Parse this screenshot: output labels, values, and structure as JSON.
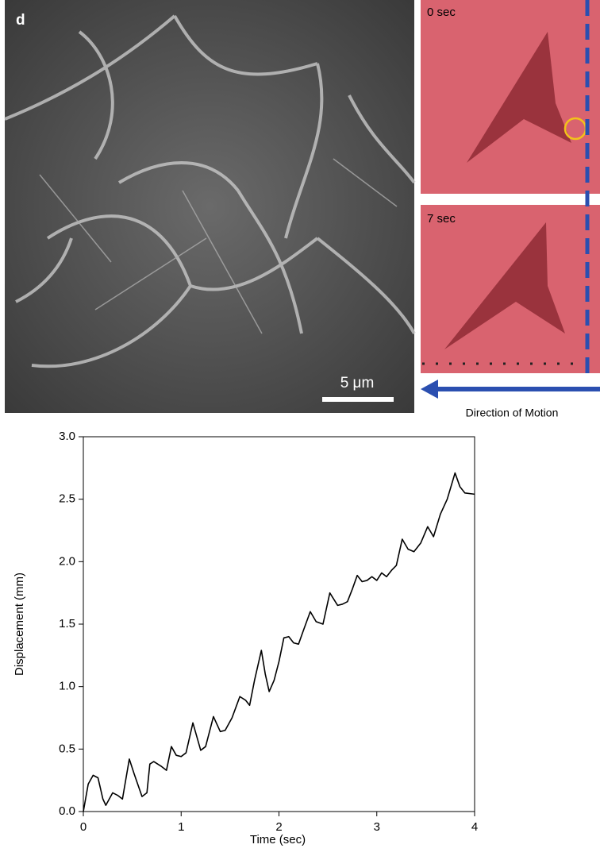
{
  "panel_label": "d",
  "scale_bar": "5 μm",
  "frames": [
    "0 sec",
    "7 sec"
  ],
  "direction_label": "Direction of Motion",
  "chart_data": {
    "type": "line",
    "x_label": "Time (sec)",
    "y_label": "Displacement (mm)",
    "xlim": [
      0,
      4
    ],
    "ylim": [
      0,
      3
    ],
    "xticks": [
      0,
      1,
      2,
      3,
      4
    ],
    "yticks": [
      {
        "value": 0,
        "label": "0.0"
      },
      {
        "value": 0.5,
        "label": "0.5"
      },
      {
        "value": 1,
        "label": "1.0"
      },
      {
        "value": 1.5,
        "label": "1.5"
      },
      {
        "value": 2,
        "label": "2.0"
      },
      {
        "value": 2.5,
        "label": "2.5"
      },
      {
        "value": 3,
        "label": "3.0"
      }
    ],
    "series": [
      {
        "color": "#000000",
        "x": [
          0,
          0.05,
          0.1,
          0.15,
          0.2,
          0.23,
          0.3,
          0.35,
          0.4,
          0.47,
          0.52,
          0.6,
          0.65,
          0.68,
          0.72,
          0.76,
          0.8,
          0.85,
          0.9,
          0.95,
          1.0,
          1.05,
          1.12,
          1.2,
          1.25,
          1.33,
          1.4,
          1.45,
          1.52,
          1.6,
          1.66,
          1.7,
          1.75,
          1.82,
          1.86,
          1.9,
          1.95,
          2.0,
          2.05,
          2.1,
          2.15,
          2.2,
          2.25,
          2.32,
          2.38,
          2.45,
          2.52,
          2.6,
          2.65,
          2.7,
          2.75,
          2.8,
          2.85,
          2.9,
          2.95,
          3.0,
          3.05,
          3.1,
          3.15,
          3.2,
          3.26,
          3.32,
          3.38,
          3.45,
          3.52,
          3.58,
          3.65,
          3.72,
          3.8,
          3.85,
          3.9,
          4.0
        ],
        "values": [
          0,
          0.22,
          0.29,
          0.27,
          0.1,
          0.05,
          0.15,
          0.13,
          0.1,
          0.42,
          0.3,
          0.12,
          0.15,
          0.38,
          0.4,
          0.38,
          0.36,
          0.33,
          0.52,
          0.45,
          0.44,
          0.47,
          0.71,
          0.49,
          0.52,
          0.76,
          0.64,
          0.65,
          0.75,
          0.92,
          0.89,
          0.85,
          1.05,
          1.29,
          1.1,
          0.96,
          1.05,
          1.2,
          1.39,
          1.4,
          1.35,
          1.34,
          1.45,
          1.6,
          1.52,
          1.5,
          1.75,
          1.65,
          1.66,
          1.68,
          1.78,
          1.89,
          1.84,
          1.85,
          1.88,
          1.85,
          1.91,
          1.88,
          1.93,
          1.97,
          2.18,
          2.1,
          2.08,
          2.15,
          2.28,
          2.2,
          2.38,
          2.5,
          2.71,
          2.6,
          2.55,
          2.54
        ]
      }
    ]
  }
}
